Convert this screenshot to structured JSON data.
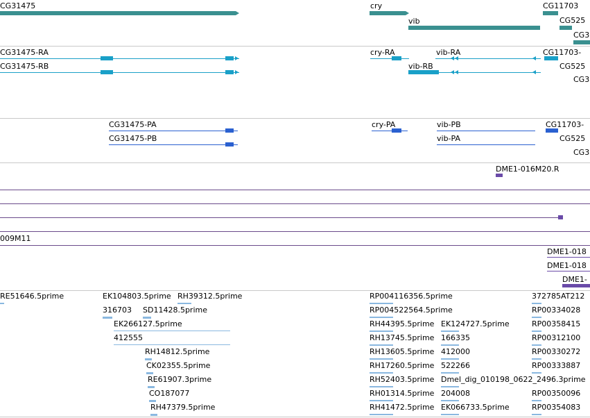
{
  "colors": {
    "gene": "#3a9090",
    "rna": "#1aa0c8",
    "protein": "#2a60d0",
    "insertion": "#6a4aa8",
    "est": "#8ab8e0",
    "track_divider": "#c8c8c8"
  },
  "genes": [
    {
      "id": "g1",
      "name": "CG31475"
    },
    {
      "id": "g2",
      "name": "cry"
    },
    {
      "id": "g3",
      "name": "vib"
    },
    {
      "id": "g4",
      "name": "CG11703"
    },
    {
      "id": "g5",
      "name": "CG525"
    }
  ],
  "transcripts": [
    {
      "id": "t1",
      "name": "CG31475-RA"
    },
    {
      "id": "t2",
      "name": "CG31475-RB"
    },
    {
      "id": "t3",
      "name": "cry-RA"
    },
    {
      "id": "t4",
      "name": "vib-RA"
    },
    {
      "id": "t5",
      "name": "vib-RB"
    },
    {
      "id": "t6",
      "name": "CG11703-"
    },
    {
      "id": "t7",
      "name": "CG525"
    },
    {
      "id": "t8",
      "name": "CG3"
    }
  ],
  "proteins": [
    {
      "id": "p1",
      "name": "CG31475-PA"
    },
    {
      "id": "p2",
      "name": "CG31475-PB"
    },
    {
      "id": "p3",
      "name": "cry-PA"
    },
    {
      "id": "p4",
      "name": "vib-PB"
    },
    {
      "id": "p5",
      "name": "vib-PA"
    },
    {
      "id": "p6",
      "name": "CG11703-"
    },
    {
      "id": "p7",
      "name": "CG525"
    },
    {
      "id": "p8",
      "name": "CG3"
    }
  ],
  "clones": {
    "top_label": "DME1-016M20.R",
    "left_label": "009M11",
    "right_labels": [
      "DME1-018",
      "DME1-018",
      "DME1-"
    ]
  },
  "ests": {
    "col1": [
      "RE51646.5prime",
      "316703",
      "EK266127.5prime",
      "412555",
      "RH14812.5prime",
      "CK02355.5prime",
      "RE61907.3prime",
      "CO187077",
      "RH47379.5prime"
    ],
    "col1_extra": [
      "EK104803.5prime",
      "RH39312.5prime",
      "SD11428.5prime"
    ],
    "col2": [
      "RP004116356.5prime",
      "RP004522564.5prime",
      "RH44395.5prime",
      "RH13745.5prime",
      "RH13605.5prime",
      "RH17260.5prime",
      "RH52403.5prime",
      "RH01314.5prime",
      "RH41472.5prime"
    ],
    "col2b": [
      "EK124727.5prime",
      "166335",
      "412000",
      "522266",
      "Dmel_dig_010198_0622_2496.3prime",
      "204008",
      "EK066733.5prime"
    ],
    "col3": [
      "372785",
      "AT212",
      "RP00334028",
      "RP00358415",
      "RP00312100",
      "RP00330272",
      "RP00333887",
      "RP00350096",
      "RP00354083"
    ]
  }
}
